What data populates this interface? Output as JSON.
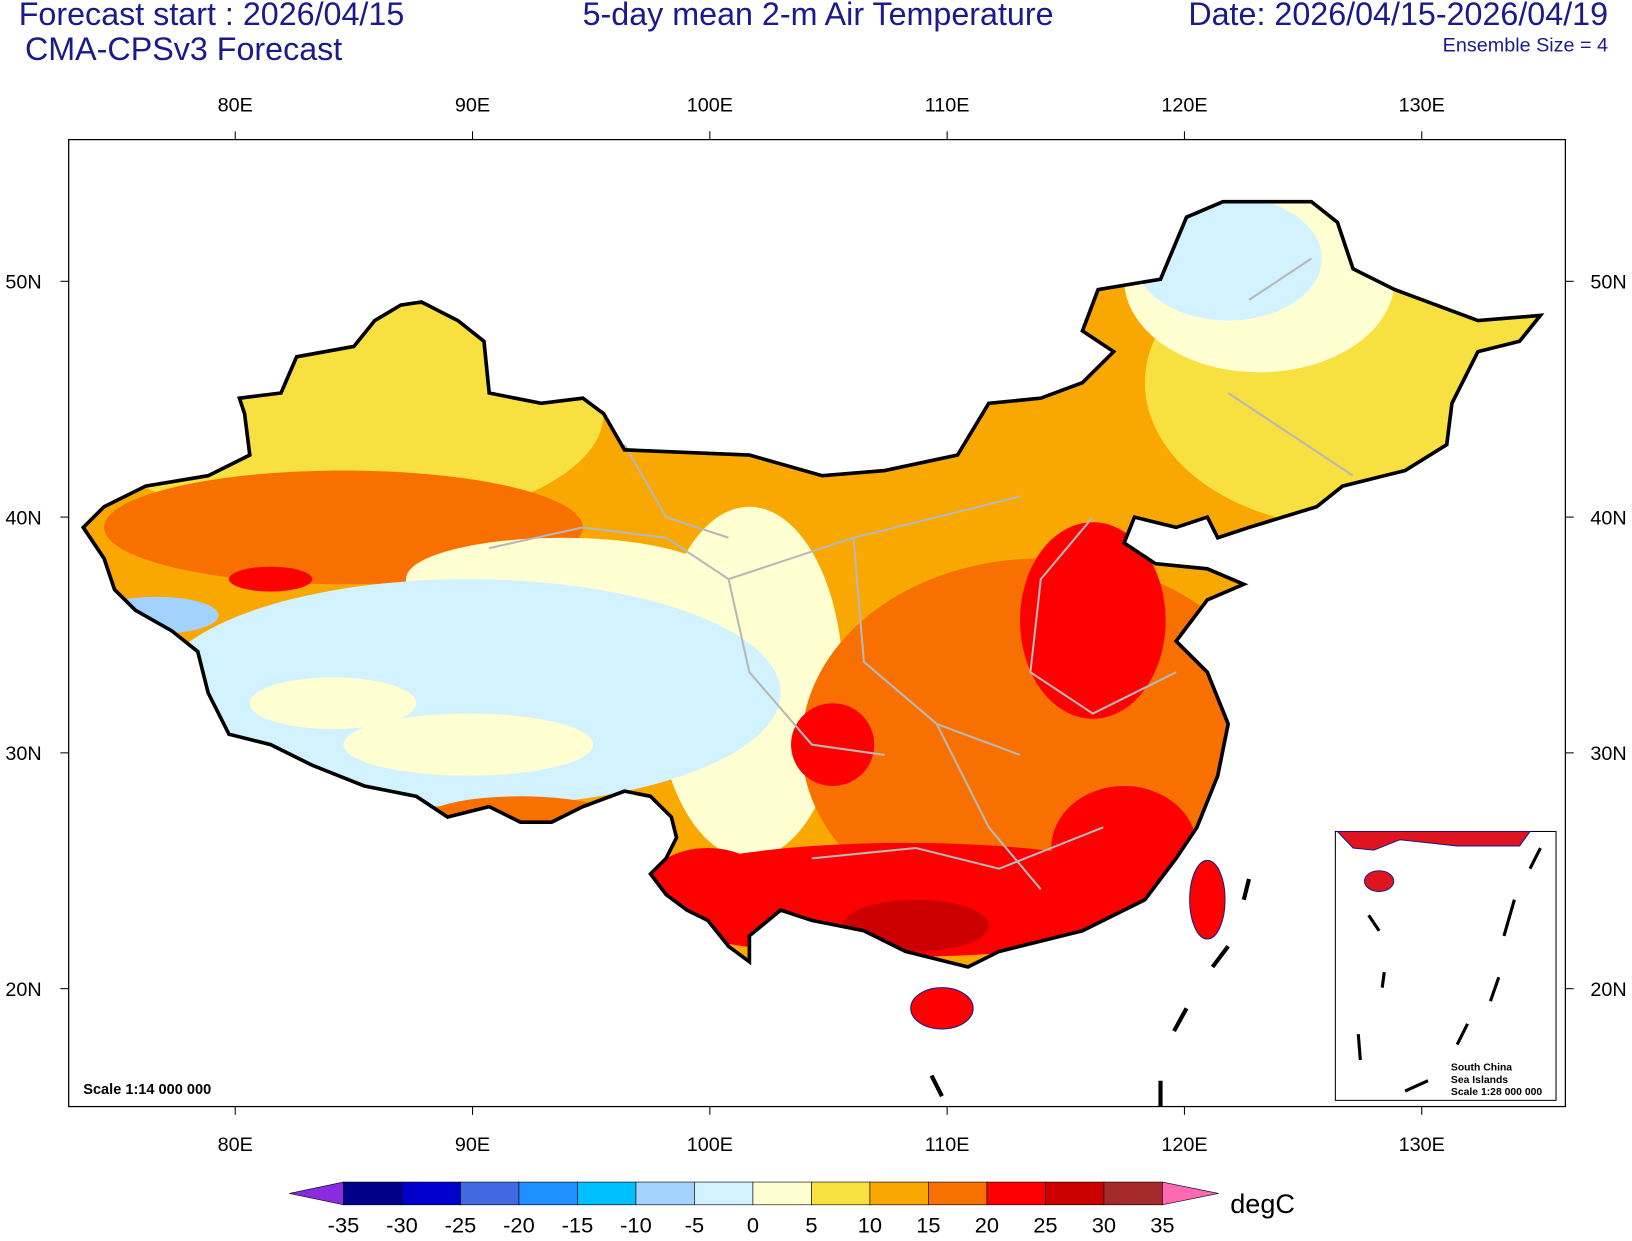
{
  "header": {
    "left": [
      "Forecast start : 2026/04/15",
      "CMA-CPSv3 Forecast"
    ],
    "center": "5-day mean 2-m Air Temperature",
    "right": "Date: 2026/04/15-2026/04/19",
    "ensemble": "Ensemble Size = 4"
  },
  "map": {
    "lon_labels": [
      "80E",
      "90E",
      "100E",
      "110E",
      "120E",
      "130E"
    ],
    "lat_labels": [
      "50N",
      "40N",
      "30N",
      "20N"
    ],
    "scale": "Scale 1:14 000 000",
    "inset": [
      "South China",
      "Sea Islands",
      "Scale 1:28 000 000"
    ]
  },
  "colorbar": {
    "levels": [
      -35,
      -30,
      -25,
      -20,
      -15,
      -10,
      -5,
      0,
      5,
      10,
      15,
      20,
      25,
      30,
      35
    ],
    "colors": [
      "#8a2be2",
      "#00008b",
      "#0000cd",
      "#4169e1",
      "#1e90ff",
      "#00bfff",
      "#a4d2ff",
      "#d2f2ff",
      "#ffffd2",
      "#f8e040",
      "#f8a800",
      "#f87000",
      "#ff0000",
      "#cc0000",
      "#a52a2a",
      "#ff69b4"
    ],
    "unit": "degC"
  }
}
